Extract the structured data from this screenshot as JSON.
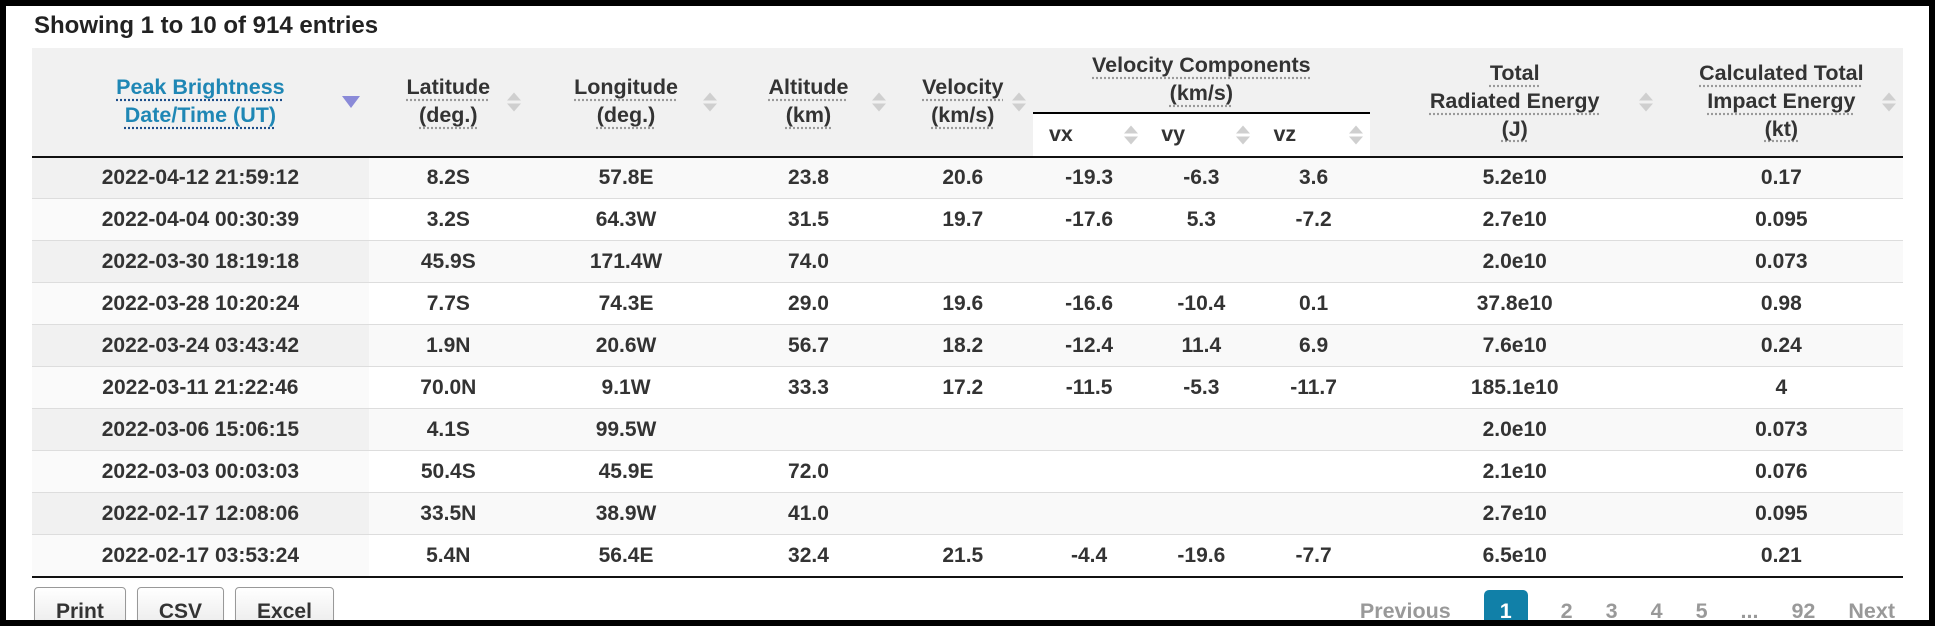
{
  "summary": "Showing 1 to 10 of 914 entries",
  "colors": {
    "accent_blue": "#1f87b5",
    "active_page_bg": "#1180a8",
    "sorted_arrow_purple": "#8a8ad8",
    "unsorted_arrow_gray": "#cfcfcf",
    "header_bg": "#f1f1f1"
  },
  "table": {
    "headers": {
      "date": {
        "lines": [
          "Peak Brightness",
          "Date/Time (UT)"
        ],
        "sorted": "desc"
      },
      "latitude": {
        "lines": [
          "Latitude",
          "(deg.)"
        ]
      },
      "longitude": {
        "lines": [
          "Longitude",
          "(deg.)"
        ]
      },
      "altitude": {
        "lines": [
          "Altitude",
          "(km)"
        ]
      },
      "velocity": {
        "lines": [
          "Velocity",
          "(km/s)"
        ]
      },
      "velocity_components": {
        "lines": [
          "Velocity Components",
          "(km/s)"
        ]
      },
      "vx": "vx",
      "vy": "vy",
      "vz": "vz",
      "radiated_energy": {
        "lines": [
          "Total",
          "Radiated Energy",
          "(J)"
        ]
      },
      "impact_energy": {
        "lines": [
          "Calculated Total",
          "Impact Energy",
          "(kt)"
        ]
      }
    },
    "columns": [
      "date",
      "latitude",
      "longitude",
      "altitude",
      "velocity",
      "vx",
      "vy",
      "vz",
      "radiated-energy",
      "impact-energy"
    ],
    "rows": [
      [
        "2022-04-12 21:59:12",
        "8.2S",
        "57.8E",
        "23.8",
        "20.6",
        "-19.3",
        "-6.3",
        "3.6",
        "5.2e10",
        "0.17"
      ],
      [
        "2022-04-04 00:30:39",
        "3.2S",
        "64.3W",
        "31.5",
        "19.7",
        "-17.6",
        "5.3",
        "-7.2",
        "2.7e10",
        "0.095"
      ],
      [
        "2022-03-30 18:19:18",
        "45.9S",
        "171.4W",
        "74.0",
        "",
        "",
        "",
        "",
        "2.0e10",
        "0.073"
      ],
      [
        "2022-03-28 10:20:24",
        "7.7S",
        "74.3E",
        "29.0",
        "19.6",
        "-16.6",
        "-10.4",
        "0.1",
        "37.8e10",
        "0.98"
      ],
      [
        "2022-03-24 03:43:42",
        "1.9N",
        "20.6W",
        "56.7",
        "18.2",
        "-12.4",
        "11.4",
        "6.9",
        "7.6e10",
        "0.24"
      ],
      [
        "2022-03-11 21:22:46",
        "70.0N",
        "9.1W",
        "33.3",
        "17.2",
        "-11.5",
        "-5.3",
        "-11.7",
        "185.1e10",
        "4"
      ],
      [
        "2022-03-06 15:06:15",
        "4.1S",
        "99.5W",
        "",
        "",
        "",
        "",
        "",
        "2.0e10",
        "0.073"
      ],
      [
        "2022-03-03 00:03:03",
        "50.4S",
        "45.9E",
        "72.0",
        "",
        "",
        "",
        "",
        "2.1e10",
        "0.076"
      ],
      [
        "2022-02-17 12:08:06",
        "33.5N",
        "38.9W",
        "41.0",
        "",
        "",
        "",
        "",
        "2.7e10",
        "0.095"
      ],
      [
        "2022-02-17 03:53:24",
        "5.4N",
        "56.4E",
        "32.4",
        "21.5",
        "-4.4",
        "-19.6",
        "-7.7",
        "6.5e10",
        "0.21"
      ]
    ]
  },
  "footer": {
    "buttons": {
      "print": "Print",
      "csv": "CSV",
      "excel": "Excel"
    },
    "pagination": {
      "items": [
        {
          "label": "Previous",
          "kind": "prev"
        },
        {
          "label": "1",
          "kind": "page",
          "state": "active"
        },
        {
          "label": "2",
          "kind": "page"
        },
        {
          "label": "3",
          "kind": "page"
        },
        {
          "label": "4",
          "kind": "page"
        },
        {
          "label": "5",
          "kind": "page"
        },
        {
          "label": "...",
          "kind": "ellipsis"
        },
        {
          "label": "92",
          "kind": "page"
        },
        {
          "label": "Next",
          "kind": "next"
        }
      ]
    }
  }
}
